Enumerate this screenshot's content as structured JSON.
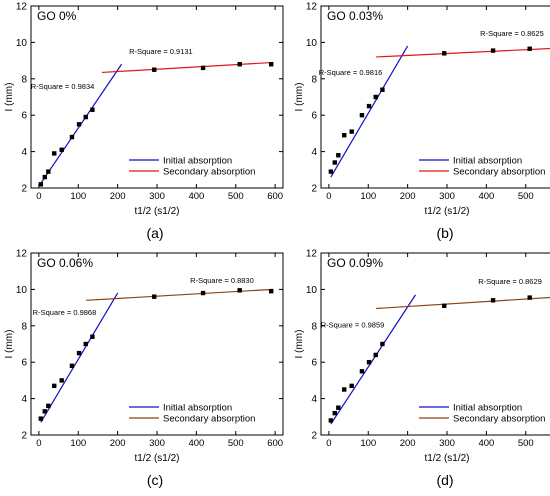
{
  "chart_data": [
    {
      "type": "scatter",
      "panel_label": "(a)",
      "title": "GO 0%",
      "xlabel": "t1/2 (s1/2)",
      "ylabel": "I (mm)",
      "xlim": [
        -20,
        620
      ],
      "ylim": [
        2,
        12
      ],
      "xticks": [
        0,
        100,
        200,
        300,
        400,
        500,
        600
      ],
      "yticks": [
        2,
        4,
        6,
        8,
        10,
        12
      ],
      "grid": false,
      "legend_position": "bottom-right",
      "points": [
        [
          5,
          2.2
        ],
        [
          15,
          2.6
        ],
        [
          24,
          2.9
        ],
        [
          39,
          3.9
        ],
        [
          58,
          4.1
        ],
        [
          84,
          4.8
        ],
        [
          102,
          5.5
        ],
        [
          119,
          5.9
        ],
        [
          136,
          6.3
        ],
        [
          293,
          8.5
        ],
        [
          417,
          8.6
        ],
        [
          510,
          8.8
        ],
        [
          590,
          8.8
        ]
      ],
      "series": [
        {
          "name": "Initial absorption",
          "color": "#1010c8",
          "line": [
            [
              0,
              2.1
            ],
            [
              210,
              8.8
            ]
          ]
        },
        {
          "name": "Secondary absorption",
          "color": "#e01818",
          "line": [
            [
              160,
              8.35
            ],
            [
              595,
              8.9
            ]
          ]
        }
      ],
      "annotations": [
        {
          "text": "R-Square = 0.9834",
          "x": 60,
          "y": 7.45
        },
        {
          "text": "R-Square = 0.9131",
          "x": 310,
          "y": 9.35
        }
      ]
    },
    {
      "type": "scatter",
      "panel_label": "(b)",
      "title": "GO 0.03%",
      "xlabel": "t1/2 (s1/2)",
      "ylabel": "I (mm)",
      "xlim": [
        -20,
        620
      ],
      "ylim": [
        2,
        12
      ],
      "xticks": [
        0,
        100,
        200,
        300,
        400,
        500,
        600
      ],
      "yticks": [
        2,
        4,
        6,
        8,
        10,
        12
      ],
      "grid": false,
      "legend_position": "bottom-right",
      "points": [
        [
          5,
          2.9
        ],
        [
          15,
          3.4
        ],
        [
          24,
          3.8
        ],
        [
          39,
          4.9
        ],
        [
          58,
          5.1
        ],
        [
          84,
          6.0
        ],
        [
          102,
          6.5
        ],
        [
          119,
          7.0
        ],
        [
          136,
          7.4
        ],
        [
          293,
          9.4
        ],
        [
          417,
          9.55
        ],
        [
          510,
          9.65
        ],
        [
          590,
          9.6
        ]
      ],
      "series": [
        {
          "name": "Initial absorption",
          "color": "#1010c8",
          "line": [
            [
              5,
              2.6
            ],
            [
              200,
              9.8
            ]
          ]
        },
        {
          "name": "Secondary absorption",
          "color": "#e01818",
          "line": [
            [
              120,
              9.2
            ],
            [
              595,
              9.7
            ]
          ]
        }
      ],
      "annotations": [
        {
          "text": "R-Square = 0.9816",
          "x": 55,
          "y": 8.2
        },
        {
          "text": "R-Square = 0.8625",
          "x": 465,
          "y": 10.35
        }
      ]
    },
    {
      "type": "scatter",
      "panel_label": "(c)",
      "title": "GO 0.06%",
      "xlabel": "t1/2 (s1/2)",
      "ylabel": "I (mm)",
      "xlim": [
        -20,
        620
      ],
      "ylim": [
        2,
        12
      ],
      "xticks": [
        0,
        100,
        200,
        300,
        400,
        500,
        600
      ],
      "yticks": [
        2,
        4,
        6,
        8,
        10,
        12
      ],
      "grid": false,
      "legend_position": "bottom-right",
      "points": [
        [
          5,
          2.9
        ],
        [
          15,
          3.3
        ],
        [
          24,
          3.6
        ],
        [
          39,
          4.7
        ],
        [
          58,
          5.0
        ],
        [
          84,
          5.8
        ],
        [
          102,
          6.5
        ],
        [
          119,
          7.0
        ],
        [
          136,
          7.4
        ],
        [
          293,
          9.6
        ],
        [
          417,
          9.8
        ],
        [
          510,
          9.95
        ],
        [
          590,
          9.9
        ]
      ],
      "series": [
        {
          "name": "Initial absorption",
          "color": "#1010c8",
          "line": [
            [
              5,
              2.7
            ],
            [
              200,
              9.8
            ]
          ]
        },
        {
          "name": "Secondary absorption",
          "color": "#8b4513",
          "line": [
            [
              120,
              9.4
            ],
            [
              595,
              10.0
            ]
          ]
        }
      ],
      "annotations": [
        {
          "text": "R-Square = 0.9868",
          "x": 65,
          "y": 8.6
        },
        {
          "text": "R-Square = 0.8830",
          "x": 465,
          "y": 10.35
        }
      ]
    },
    {
      "type": "scatter",
      "panel_label": "(d)",
      "title": "GO 0.09%",
      "xlabel": "t1/2 (s1/2)",
      "ylabel": "I (mm)",
      "xlim": [
        -20,
        620
      ],
      "ylim": [
        2,
        12
      ],
      "xticks": [
        0,
        100,
        200,
        300,
        400,
        500,
        600
      ],
      "yticks": [
        2,
        4,
        6,
        8,
        10,
        12
      ],
      "grid": false,
      "legend_position": "bottom-right",
      "points": [
        [
          5,
          2.8
        ],
        [
          15,
          3.2
        ],
        [
          24,
          3.5
        ],
        [
          39,
          4.5
        ],
        [
          58,
          4.7
        ],
        [
          84,
          5.5
        ],
        [
          102,
          6.0
        ],
        [
          119,
          6.4
        ],
        [
          136,
          7.0
        ],
        [
          293,
          9.1
        ],
        [
          417,
          9.4
        ],
        [
          510,
          9.55
        ],
        [
          590,
          9.5
        ]
      ],
      "series": [
        {
          "name": "Initial absorption",
          "color": "#1010c8",
          "line": [
            [
              5,
              2.6
            ],
            [
              220,
              9.7
            ]
          ]
        },
        {
          "name": "Secondary absorption",
          "color": "#8b4513",
          "line": [
            [
              120,
              8.95
            ],
            [
              595,
              9.6
            ]
          ]
        }
      ],
      "annotations": [
        {
          "text": "R-Square = 0.9859",
          "x": 60,
          "y": 7.9
        },
        {
          "text": "R-Square = 0.8629",
          "x": 460,
          "y": 10.3
        }
      ]
    }
  ]
}
